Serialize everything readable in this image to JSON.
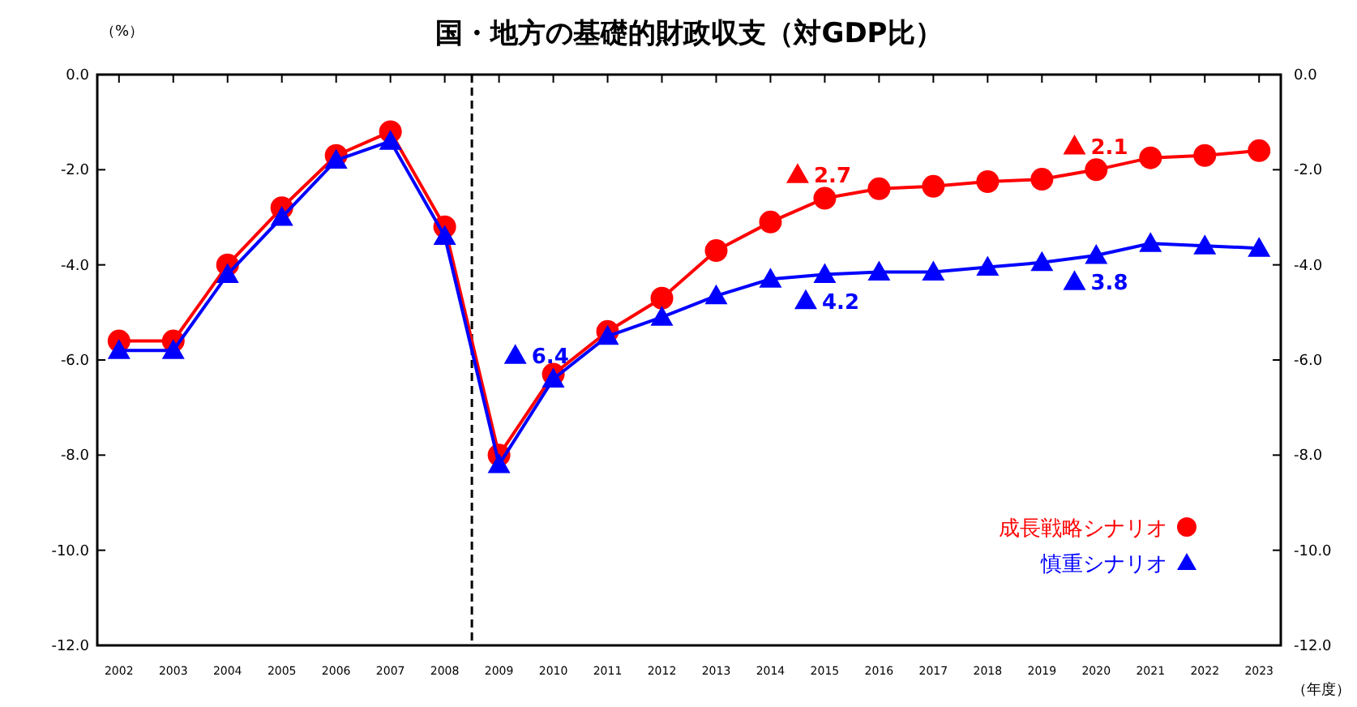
{
  "chart_data": {
    "type": "line",
    "title": "国・地方の基礎的財政収支（対GDP比）",
    "ylabel": "（%）",
    "xlabel": "（年度）",
    "x": [
      2002,
      2003,
      2004,
      2005,
      2006,
      2007,
      2008,
      2009,
      2010,
      2011,
      2012,
      2013,
      2014,
      2015,
      2016,
      2017,
      2018,
      2019,
      2020,
      2021,
      2022,
      2023
    ],
    "xlim": [
      2001.6,
      2023.4
    ],
    "xticks": [
      2002,
      2003,
      2004,
      2005,
      2006,
      2007,
      2008,
      2009,
      2010,
      2011,
      2012,
      2013,
      2014,
      2015,
      2016,
      2017,
      2018,
      2019,
      2020,
      2021,
      2022,
      2023
    ],
    "ylim": [
      -12,
      0
    ],
    "yticks": [
      {
        "value": 0,
        "label": "0.0"
      },
      {
        "value": -2,
        "label": "-2.0"
      },
      {
        "value": -4,
        "label": "-4.0"
      },
      {
        "value": -6,
        "label": "-6.0"
      },
      {
        "value": -8,
        "label": "-8.0"
      },
      {
        "value": -10,
        "label": "-10.0"
      },
      {
        "value": -12,
        "label": "-12.0"
      }
    ],
    "y2lim": [
      -12,
      0
    ],
    "y2ticks": [
      {
        "value": 0,
        "label": "0.0"
      },
      {
        "value": -2,
        "label": "-2.0"
      },
      {
        "value": -4,
        "label": "-4.0"
      },
      {
        "value": -6,
        "label": "-6.0"
      },
      {
        "value": -8,
        "label": "-8.0"
      },
      {
        "value": -10,
        "label": "-10.0"
      },
      {
        "value": -12,
        "label": "-12.0"
      }
    ],
    "series": [
      {
        "name": "成長戦略シナリオ",
        "color": "#ff0000",
        "marker": "circle",
        "values": [
          -5.6,
          -5.6,
          -4.0,
          -2.8,
          -1.7,
          -1.2,
          -3.2,
          -8.0,
          -6.3,
          -5.4,
          -4.7,
          -3.7,
          -3.1,
          -2.6,
          -2.4,
          -2.35,
          -2.25,
          -2.2,
          -2.0,
          -1.75,
          -1.7,
          -1.6
        ]
      },
      {
        "name": "慎重シナリオ",
        "color": "#0000ff",
        "marker": "triangle",
        "values": [
          -5.8,
          -5.8,
          -4.2,
          -3.0,
          -1.8,
          -1.4,
          -3.4,
          -8.2,
          -6.4,
          -5.5,
          -5.1,
          -4.65,
          -4.3,
          -4.2,
          -4.15,
          -4.15,
          -4.05,
          -3.95,
          -3.8,
          -3.55,
          -3.6,
          -3.65
        ]
      },
      {
        "type": "scatter",
        "color": "#ff0000",
        "marker": "triangle",
        "x": [
          2014.5,
          2019.6
        ],
        "values": [
          -2.1,
          -1.5
        ]
      },
      {
        "type": "scatter",
        "color": "#0000ff",
        "marker": "triangle",
        "x": [
          2009.3,
          2014.65,
          2019.6
        ],
        "values": [
          -5.9,
          -4.75,
          -4.35
        ]
      }
    ],
    "annotations": [
      {
        "text": "2.7",
        "x": 2014.5,
        "y": -2.1
      },
      {
        "text": "2.1",
        "x": 2019.6,
        "y": -1.5
      },
      {
        "text": "6.4",
        "x": 2009.3,
        "y": -5.9
      },
      {
        "text": "4.2",
        "x": 2014.65,
        "y": -4.75
      },
      {
        "text": "3.8",
        "x": 2019.6,
        "y": -4.35
      }
    ],
    "ref_lines": [
      {
        "axis": "x",
        "value": 2008.5,
        "color": "#000000",
        "line_style": "dashed"
      }
    ],
    "line_style": "solid",
    "grid": false,
    "legend": "bottom right"
  }
}
